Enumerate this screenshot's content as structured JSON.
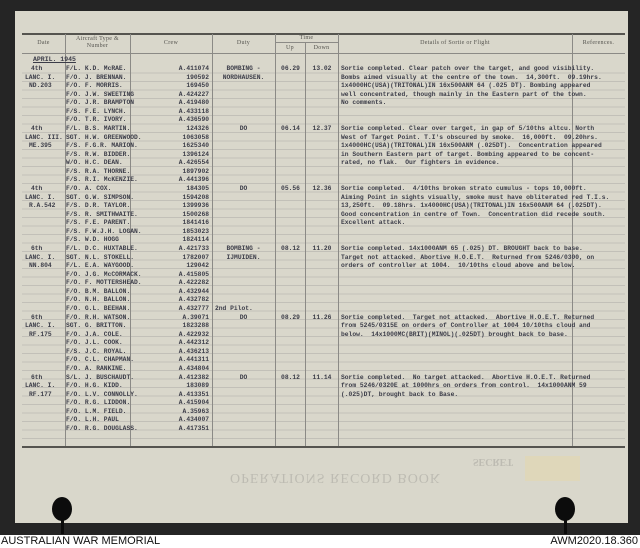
{
  "headers": {
    "date": "Date",
    "aircraft": "Aircraft Type & Number",
    "crew": "Crew",
    "duty": "Duty",
    "time": "Time",
    "up": "Up",
    "down": "Down",
    "details": "Details of Sortie or Flight",
    "references": "References."
  },
  "month": "APRIL. 1945",
  "sorties": [
    {
      "date": "4th",
      "type": "LANC. I.",
      "serial": "ND.203",
      "crew": [
        [
          "F/L. K.D. McRAE.",
          "A.411074"
        ],
        [
          "F/O. J. BRENNAN.",
          "190592"
        ],
        [
          "F/O. F. MORRIS.",
          "169450"
        ],
        [
          "F/O. J.W. SWEETING",
          "A.424227"
        ],
        [
          "F/O. J.R. BRAMPTON",
          "A.419480"
        ],
        [
          "F/S. F.E. LYNCH.",
          "A.433118"
        ],
        [
          "F/O. T.R. IVORY.",
          "A.436590"
        ]
      ],
      "duty": [
        "BOMBING -",
        "NORDHAUSEN."
      ],
      "up": "06.29",
      "down": "13.02",
      "details": [
        "Sortie completed. Clear patch over the target, and good visibility.",
        "Bombs aimed visually at the centre of the town.  14,300ft.  09.19hrs.",
        "1x4000HC(USA)(TRITONAL)IN 16x500ANM 64 (.025 DT). Bombing appeared",
        "well concentrated, though mainly in the Eastern part of the town.",
        "No comments."
      ]
    },
    {
      "date": "4th",
      "type": "LANC. III.",
      "serial": "ME.395",
      "crew": [
        [
          "F/L. B.S. MARTIN.",
          "124326"
        ],
        [
          "SGT. H.W. GREENWOOD.",
          "1063058"
        ],
        [
          "F/S. F.G.R. MARION.",
          "1625340"
        ],
        [
          "F/S. R.W. BIDDER.",
          "1396124"
        ],
        [
          "W/O. H.C. DEAN.",
          "A.426554"
        ],
        [
          "F/S. R.A. THORNE.",
          "1897902"
        ],
        [
          "F/S. R.I. McKENZIE.",
          "A.441396"
        ]
      ],
      "duty": [
        "DO"
      ],
      "up": "06.14",
      "down": "12.37",
      "details": [
        "Sortie completed. Clear over target, in gap of 5/10ths altcu. North",
        "West of Target Point. T.I's obscured by smoke.  16,000ft.  09.20hrs.",
        "1x4000HC(USA)(TRITONAL)IN 16x500ANM (.025DT).  Concentration appeared",
        "in Southern Eastern part of target. Bombing appeared to be concent-",
        "rated, no flak.  Our fighters in evidence."
      ]
    },
    {
      "date": "4th",
      "type": "LANC. I.",
      "serial": "R.A.542",
      "crew": [
        [
          "F/O. A. COX.",
          "184305"
        ],
        [
          "SGT. G.W. SIMPSON.",
          "1594208"
        ],
        [
          "F/S. D.R. TAYLOR.",
          "1399936"
        ],
        [
          "F/S. R. SMITHWAITE.",
          "1500268"
        ],
        [
          "F/S. F.E. PARENT.",
          "1841416"
        ],
        [
          "F/S. F.W.J.H. LOGAN.",
          "1853023"
        ],
        [
          "F/S. W.D. HOGG",
          "1824114"
        ]
      ],
      "duty": [
        "DO"
      ],
      "up": "05.56",
      "down": "12.36",
      "details": [
        "Sortie completed.  4/10ths broken strato cumulus - tops 10,000ft.",
        "Aiming Point in sights visually, smoke must have obliterated red T.I.s.",
        "13,250ft.  09.18hrs. 1x4000HC(USA)(TRITONAL)IN 16x500ANM 64 (.025DT).",
        "Good concentration in centre of Town.  Concentration did recede south.",
        "Excellent attack."
      ]
    },
    {
      "date": "6th",
      "type": "LANC. I.",
      "serial": "NN.804",
      "crew": [
        [
          "F/L. D.C. HUXTABLE.",
          "A.421733"
        ],
        [
          "SGT. N.L. STOKELL.",
          "1782007"
        ],
        [
          "F/L. E.A. WAYGOOD.",
          "129042"
        ],
        [
          "F/O. J.G. McCORMACK.",
          "A.415805"
        ],
        [
          "F/O. F. MOTTERSHEAD.",
          "A.422282"
        ],
        [
          "F/O. B.M. BALLON.",
          "A.432944"
        ],
        [
          "F/O. N.H. BALLON.",
          "A.432782"
        ],
        [
          "F/O. G.L. BEEHAN.",
          "A.432777"
        ]
      ],
      "note": "2nd Pilot.",
      "duty": [
        "BOMBING -",
        "IJMUIDEN."
      ],
      "up": "08.12",
      "down": "11.20",
      "details": [
        "Sortie completed. 14x1000ANM 65 (.025) DT. BROUGHT back to base.",
        "Target not attacked. Abortive H.O.E.T.  Returned from 5246/0300, on",
        "orders of controller at 1004.  10/10ths cloud above and below."
      ]
    },
    {
      "date": "6th",
      "type": "LANC. I.",
      "serial": "RF.175",
      "crew": [
        [
          "F/O. R.H. WATSON.",
          "A.39071"
        ],
        [
          "SGT. G. BRITTON.",
          "1823288"
        ],
        [
          "F/O. J.A. COLE.",
          "A.422932"
        ],
        [
          "F/O. J.L. COOK.",
          "A.442312"
        ],
        [
          "F/S. J.C. ROYAL.",
          "A.436213"
        ],
        [
          "F/O. C.L. CHAPMAN.",
          "A.441311"
        ],
        [
          "F/O. A. RANKINE.",
          "A.434804"
        ]
      ],
      "duty": [
        "DO"
      ],
      "up": "08.29",
      "down": "11.26",
      "details": [
        "Sortie completed.  Target not attacked.  Abortive H.O.E.T. Returned",
        "from 5245/0315E on orders of Controller at 1004 10/10ths cloud and",
        "below.  14x1000MC(BRIT)(MINOL)(.025DT) brought back to base."
      ]
    },
    {
      "date": "6th",
      "type": "LANC. I.",
      "serial": "RF.177",
      "crew": [
        [
          "S/L. J. BUSCHAUDT.",
          "A.412382"
        ],
        [
          "F/O. H.G. KIDD.",
          "183089"
        ],
        [
          "F/O. L.V. CONNOLLY.",
          "A.413351"
        ],
        [
          "F/O. R.G. LIDDON.",
          "A.415904"
        ],
        [
          "F/O. L.M. FIELD.",
          "A.35963"
        ],
        [
          "F/O. L.H. PAUL",
          "A.434007"
        ],
        [
          "F/O. R.G. DOUGLASS.",
          "A.417351"
        ]
      ],
      "duty": [
        "DO"
      ],
      "up": "08.12",
      "down": "11.14",
      "details": [
        "Sortie completed.  No target attacked.  Abortive H.O.E.T. Returned",
        "from 5246/0320E at 1000hrs on orders from control.  14x1000ANM 59",
        "(.025)DT, brought back to Base."
      ]
    }
  ],
  "footer_form": "OPERATIONS RECORD BOOK",
  "stamp": "SECRET",
  "caption": {
    "left": "AUSTRALIAN WAR MEMORIAL",
    "right": "AWM2020.18.360"
  }
}
